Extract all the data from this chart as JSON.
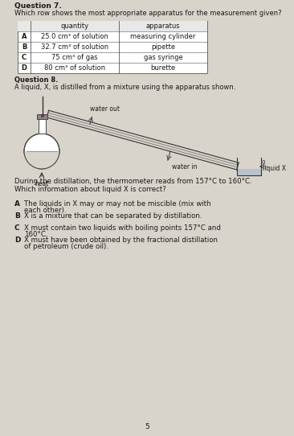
{
  "page_bg": "#d8d4cc",
  "q7_label": "Question 7.",
  "q7_text": "Which row shows the most appropriate apparatus for the measurement given?",
  "table_headers": [
    "",
    "quantity",
    "apparatus"
  ],
  "table_rows": [
    [
      "A",
      "25.0 cm³ of solution",
      "measuring cylinder"
    ],
    [
      "B",
      "32.7 cm³ of solution",
      "pipette"
    ],
    [
      "C",
      "75 cm³ of gas",
      "gas syringe"
    ],
    [
      "D",
      "80 cm³ of solution",
      "burette"
    ]
  ],
  "q8_label": "Question 8.",
  "q8_text": "A liquid, X, is distilled from a mixture using the apparatus shown.",
  "water_out": "water out",
  "water_in": "water in",
  "heat": "heat",
  "liquid_x": "liquid X",
  "thermo_text": "During the distillation, the thermometer reads from 157°C to 160°C.",
  "question_text": "Which information about liquid X is correct?",
  "options": [
    [
      "A",
      "The liquids in X may or may not be miscible (mix with each other)."
    ],
    [
      "B",
      "X is a mixture that can be separated by distillation."
    ],
    [
      "C",
      "X must contain two liquids with boiling points 157°C and 160°C."
    ],
    [
      "D",
      "X must have been obtained by the fractional distillation of petroleum (crude oil)."
    ]
  ],
  "page_number": "5",
  "text_color": "#1a1a1a"
}
